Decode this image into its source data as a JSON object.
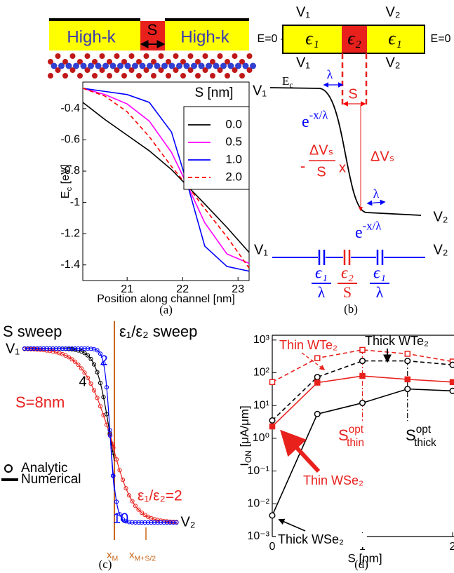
{
  "chart_data": [
    {
      "type": "line",
      "caption": "(a)",
      "device_labels": [
        "High-k",
        "S",
        "High-k"
      ],
      "xlabel": "Position along channel [nm]",
      "ylabel": {
        "base": "E",
        "sub": "c",
        "rest": " [eV]"
      },
      "legend_title": "S [nm]",
      "legend": "upper right",
      "x": [
        20.2,
        20.6,
        21,
        21.4,
        21.8,
        22.1,
        22.4,
        22.8,
        23.2
      ],
      "xlim": [
        20.2,
        23.2
      ],
      "xticks": [
        21,
        22,
        23
      ],
      "ylim": [
        -1.5,
        -0.23
      ],
      "yticks": [
        -1.4,
        -1.2,
        -1,
        -0.8,
        -0.6,
        -0.4
      ],
      "series": [
        {
          "name": "0.0",
          "color": "#000000",
          "dash": false,
          "values": [
            -0.36,
            -0.47,
            -0.57,
            -0.67,
            -0.79,
            -0.9,
            -1.01,
            -1.16,
            -1.32
          ]
        },
        {
          "name": "0.5",
          "color": "#ff00ff",
          "dash": false,
          "values": [
            -0.27,
            -0.31,
            -0.37,
            -0.48,
            -0.68,
            -0.9,
            -1.13,
            -1.33,
            -1.39
          ]
        },
        {
          "name": "1.0",
          "color": "#0000ff",
          "dash": false,
          "values": [
            -0.27,
            -0.29,
            -0.31,
            -0.36,
            -0.55,
            -0.9,
            -1.28,
            -1.41,
            -1.44
          ]
        },
        {
          "name": "2.0",
          "color": "#ff0000",
          "dash": true,
          "values": [
            -0.27,
            -0.32,
            -0.42,
            -0.58,
            -0.77,
            -0.9,
            -1.04,
            -1.22,
            -1.42
          ]
        }
      ]
    },
    {
      "type": "line",
      "caption": "(d)",
      "log_y": true,
      "xlabel": "S [nm]",
      "ylabel": {
        "base": "I",
        "sub": "ON",
        "rest": " [μA/μm]"
      },
      "x": [
        0,
        0.5,
        1,
        1.5,
        2
      ],
      "xlim": [
        0,
        2
      ],
      "xticks": [
        0,
        1,
        2
      ],
      "ylim": [
        0.001,
        1400
      ],
      "yticks": [
        {
          "value": 0.001,
          "label": "10⁻³"
        },
        {
          "value": 0.01,
          "label": "10⁻²"
        },
        {
          "value": 0.1,
          "label": "10⁻¹"
        },
        {
          "value": 1,
          "label": "10⁰"
        },
        {
          "value": 10,
          "label": "10¹"
        },
        {
          "value": 100,
          "label": "10²"
        },
        {
          "value": 1000,
          "label": "10³"
        }
      ],
      "series": [
        {
          "name": "Thin WTe₂",
          "color": "#e8211d",
          "dash": true,
          "marker": "square",
          "filled": false,
          "values": [
            52,
            280,
            500,
            380,
            220
          ]
        },
        {
          "name": "Thick WTe₂",
          "color": "#000000",
          "dash": true,
          "marker": "circle",
          "filled": false,
          "values": [
            3.5,
            74,
            230,
            230,
            175
          ]
        },
        {
          "name": "Thin WSe₂",
          "color": "#e8211d",
          "dash": false,
          "marker": "square",
          "filled": true,
          "values": [
            2.3,
            50,
            80,
            63,
            52
          ]
        },
        {
          "name": "Thick WSe₂",
          "color": "#000000",
          "dash": false,
          "marker": "circle",
          "filled": false,
          "values": [
            0.0044,
            5.5,
            12,
            32,
            28
          ]
        }
      ],
      "annotations": [
        {
          "base": "S",
          "sup": "opt",
          "sub": "thin"
        },
        {
          "base": "S",
          "sup": "opt",
          "sub": "thick"
        }
      ]
    }
  ],
  "panel_b": {
    "caption": "(b)",
    "top_labels": [
      "V₁",
      "V₂"
    ],
    "bottom_labels": [
      "V₁",
      "V₂"
    ],
    "boundary": [
      "E=0",
      "E=0"
    ],
    "regions": [
      "ϵ₁",
      "ϵ₂",
      "ϵ₁"
    ],
    "ends": [
      "V₁",
      "V₂"
    ],
    "band": {
      "base": "E",
      "sub": "c"
    },
    "lambda": "λ",
    "s": "S",
    "decay": {
      "base": "e",
      "sup": "-x/λ"
    },
    "slope": {
      "sign": "-",
      "num": "ΔVₛ",
      "den": "S",
      "var": "x"
    },
    "drop": "ΔVₛ",
    "caps": [
      {
        "num": "ϵ₁",
        "den": "λ"
      },
      {
        "num": "ϵ₂",
        "den": "S"
      },
      {
        "num": "ϵ₁",
        "den": "λ"
      }
    ]
  },
  "panel_c": {
    "caption": "(c)",
    "left_title": "S sweep",
    "right_title": "ε₁/ε₂ sweep",
    "ends": [
      "V₁",
      "V₂"
    ],
    "s_labels": [
      "4",
      "2",
      "S=8nm"
    ],
    "ratio_labels": [
      "ε₁/ε₂=2",
      "10"
    ],
    "legend": [
      "Analytic",
      "Numerical"
    ],
    "x_marks": [
      {
        "base": "x",
        "sub": "M"
      },
      {
        "base": "x",
        "sub": "M+S/2"
      }
    ]
  }
}
